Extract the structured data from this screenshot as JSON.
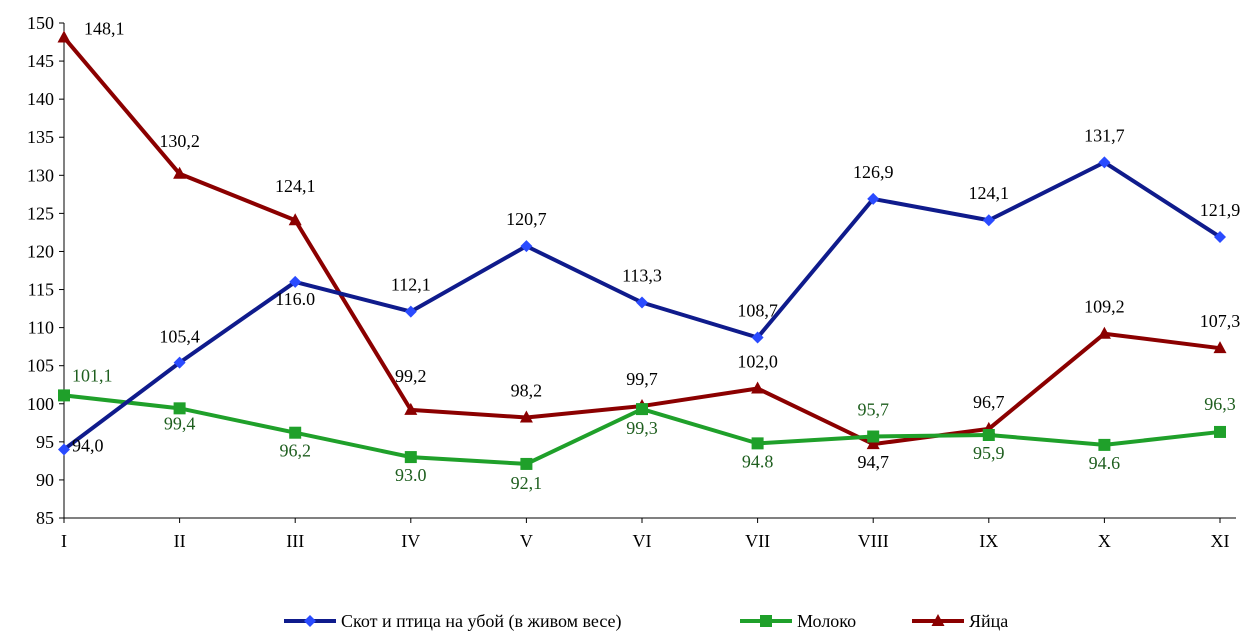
{
  "chart_data": {
    "type": "line",
    "title": "",
    "xlabel": "",
    "ylabel": "",
    "categories": [
      "I",
      "II",
      "III",
      "IV",
      "V",
      "VI",
      "VII",
      "VIII",
      "IX",
      "X",
      "XI"
    ],
    "ylim": [
      85,
      150
    ],
    "yticks": [
      85,
      90,
      95,
      100,
      105,
      110,
      115,
      120,
      125,
      130,
      135,
      140,
      145,
      150
    ],
    "grid": false,
    "legend_position": "bottom",
    "series": [
      {
        "name": "Скот и птица на убой (в живом весе)",
        "color": "#0F1B8C",
        "marker": "diamond",
        "marker_color": "#2A4BFF",
        "values": [
          94.0,
          105.4,
          116.0,
          112.1,
          120.7,
          113.3,
          108.7,
          126.9,
          124.1,
          131.7,
          121.9
        ],
        "labels": [
          "94,0",
          "105,4",
          "116.0",
          "112,1",
          "120,7",
          "113,3",
          "108,7",
          "126,9",
          "124,1",
          "131,7",
          "121,9"
        ]
      },
      {
        "name": "Молоко",
        "color": "#1FA02A",
        "marker": "square",
        "marker_color": "#1FA02A",
        "label_color": "#1E5E1E",
        "values": [
          101.1,
          99.4,
          96.2,
          93.0,
          92.1,
          99.3,
          94.8,
          95.7,
          95.9,
          94.6,
          96.3
        ],
        "labels": [
          "101,1",
          "99,4",
          "96,2",
          "93.0",
          "92,1",
          "99,3",
          "94.8",
          "95,7",
          "95,9",
          "94.6",
          "96,3"
        ]
      },
      {
        "name": "Яйца",
        "color": "#8B0000",
        "marker": "triangle",
        "marker_color": "#8B0000",
        "values": [
          148.1,
          130.2,
          124.1,
          99.2,
          98.2,
          99.7,
          102.0,
          94.7,
          96.7,
          109.2,
          107.3
        ],
        "labels": [
          "148,1",
          "130,2",
          "124,1",
          "99,2",
          "98,2",
          "99,7",
          "102,0",
          "94,7",
          "96,7",
          "109,2",
          "107,3"
        ]
      }
    ]
  }
}
